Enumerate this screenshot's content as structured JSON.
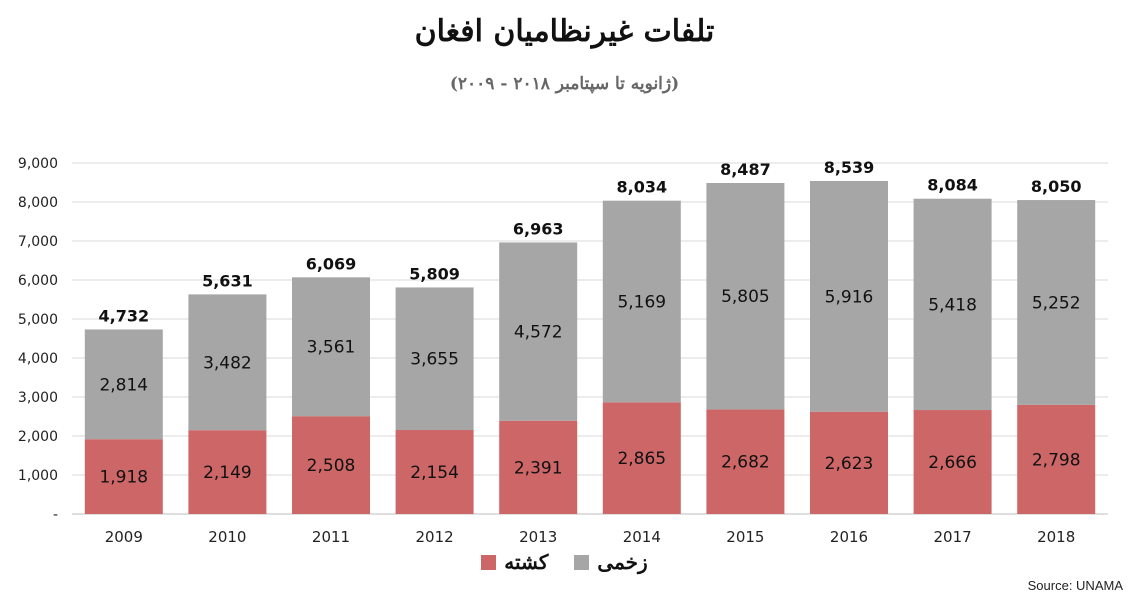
{
  "title": "تلفات غیرنظامیان افغان",
  "subtitle": "(ژانویه تا سپتامبر ۲۰۱۸ - ۲۰۰۹)",
  "source": "Source: UNAMA",
  "chart_data": {
    "type": "bar",
    "stacked": true,
    "categories": [
      "2009",
      "2010",
      "2011",
      "2012",
      "2013",
      "2014",
      "2015",
      "2016",
      "2017",
      "2018"
    ],
    "series": [
      {
        "name": "کشته",
        "color": "#cd6667",
        "values": [
          1918,
          2149,
          2508,
          2154,
          2391,
          2865,
          2682,
          2623,
          2666,
          2798
        ]
      },
      {
        "name": "زخمی",
        "color": "#a6a6a6",
        "values": [
          2814,
          3482,
          3561,
          3655,
          4572,
          5169,
          5805,
          5916,
          5418,
          5252
        ]
      }
    ],
    "totals": [
      4732,
      5631,
      6069,
      5809,
      6963,
      8034,
      8487,
      8539,
      8084,
      8050
    ],
    "ylim": [
      0,
      9000
    ],
    "yticks": [
      "-",
      "1,000",
      "2,000",
      "3,000",
      "4,000",
      "5,000",
      "6,000",
      "7,000",
      "8,000",
      "9,000"
    ],
    "grid": true,
    "legend_position": "bottom"
  }
}
